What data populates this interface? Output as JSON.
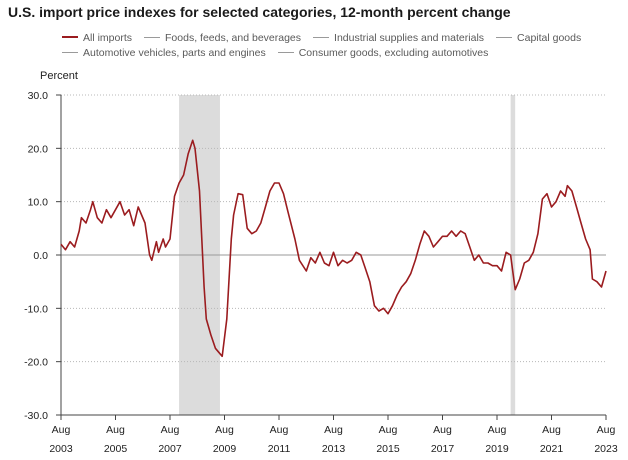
{
  "chart_data": {
    "type": "line",
    "title": "U.S. import price indexes for selected categories, 12-month percent change",
    "ylabel": "Percent",
    "ylim": [
      -30,
      30
    ],
    "y_ticks": [
      "30.0",
      "20.0",
      "10.0",
      "0.0",
      "-10.0",
      "-20.0",
      "-30.0"
    ],
    "y_tick_values": [
      30,
      20,
      10,
      0,
      -10,
      -20,
      -30
    ],
    "x_range": [
      "2003-08",
      "2023-08"
    ],
    "x_ticks": [
      {
        "month": "Aug",
        "year": "2003",
        "date": "2003-08"
      },
      {
        "month": "Aug",
        "year": "2005",
        "date": "2005-08"
      },
      {
        "month": "Aug",
        "year": "2007",
        "date": "2007-08"
      },
      {
        "month": "Aug",
        "year": "2009",
        "date": "2009-08"
      },
      {
        "month": "Aug",
        "year": "2011",
        "date": "2011-08"
      },
      {
        "month": "Aug",
        "year": "2013",
        "date": "2013-08"
      },
      {
        "month": "Aug",
        "year": "2015",
        "date": "2015-08"
      },
      {
        "month": "Aug",
        "year": "2017",
        "date": "2017-08"
      },
      {
        "month": "Aug",
        "year": "2019",
        "date": "2019-08"
      },
      {
        "month": "Aug",
        "year": "2021",
        "date": "2021-08"
      },
      {
        "month": "Aug",
        "year": "2023",
        "date": "2023-08"
      }
    ],
    "recessions": [
      {
        "start": "2007-12",
        "end": "2009-06"
      },
      {
        "start": "2020-02",
        "end": "2020-04"
      }
    ],
    "grid": "horizontal dotted",
    "legend_position": "top",
    "legend": [
      {
        "name": "All imports",
        "color": "#9b1c1f",
        "visible": true
      },
      {
        "name": "Foods, feeds, and beverages",
        "color": "#9a9a9a",
        "visible": false
      },
      {
        "name": "Industrial supplies and materials",
        "color": "#9a9a9a",
        "visible": false
      },
      {
        "name": "Capital goods",
        "color": "#9a9a9a",
        "visible": false
      },
      {
        "name": "Automotive vehicles, parts and engines",
        "color": "#9a9a9a",
        "visible": false
      },
      {
        "name": "Consumer goods, excluding automotives",
        "color": "#9a9a9a",
        "visible": false
      }
    ],
    "series": [
      {
        "name": "All imports",
        "color": "#9b1c1f",
        "points": [
          [
            "2003-08",
            2.0
          ],
          [
            "2003-10",
            1.0
          ],
          [
            "2003-12",
            2.5
          ],
          [
            "2004-02",
            1.5
          ],
          [
            "2004-04",
            4.5
          ],
          [
            "2004-05",
            7.0
          ],
          [
            "2004-07",
            6.0
          ],
          [
            "2004-09",
            8.5
          ],
          [
            "2004-10",
            10.0
          ],
          [
            "2004-12",
            7.0
          ],
          [
            "2005-02",
            6.0
          ],
          [
            "2005-04",
            8.5
          ],
          [
            "2005-06",
            7.0
          ],
          [
            "2005-08",
            8.5
          ],
          [
            "2005-10",
            10.0
          ],
          [
            "2005-12",
            7.5
          ],
          [
            "2006-02",
            8.5
          ],
          [
            "2006-04",
            5.5
          ],
          [
            "2006-06",
            9.0
          ],
          [
            "2006-09",
            6.0
          ],
          [
            "2006-11",
            0.0
          ],
          [
            "2006-12",
            -1.0
          ],
          [
            "2007-02",
            2.5
          ],
          [
            "2007-03",
            0.5
          ],
          [
            "2007-05",
            3.0
          ],
          [
            "2007-06",
            1.5
          ],
          [
            "2007-08",
            3.0
          ],
          [
            "2007-10",
            11.0
          ],
          [
            "2007-12",
            13.5
          ],
          [
            "2008-02",
            15.0
          ],
          [
            "2008-04",
            19.0
          ],
          [
            "2008-06",
            21.5
          ],
          [
            "2008-07",
            20.0
          ],
          [
            "2008-09",
            12.0
          ],
          [
            "2008-10",
            3.0
          ],
          [
            "2008-11",
            -6.0
          ],
          [
            "2008-12",
            -12.0
          ],
          [
            "2009-02",
            -15.0
          ],
          [
            "2009-04",
            -17.5
          ],
          [
            "2009-07",
            -19.0
          ],
          [
            "2009-09",
            -12.0
          ],
          [
            "2009-11",
            3.0
          ],
          [
            "2009-12",
            7.5
          ],
          [
            "2010-02",
            11.5
          ],
          [
            "2010-04",
            11.3
          ],
          [
            "2010-06",
            5.0
          ],
          [
            "2010-08",
            4.0
          ],
          [
            "2010-10",
            4.5
          ],
          [
            "2010-12",
            6.0
          ],
          [
            "2011-02",
            9.0
          ],
          [
            "2011-04",
            12.0
          ],
          [
            "2011-06",
            13.5
          ],
          [
            "2011-08",
            13.5
          ],
          [
            "2011-10",
            11.5
          ],
          [
            "2011-12",
            8.0
          ],
          [
            "2012-03",
            3.0
          ],
          [
            "2012-05",
            -1.0
          ],
          [
            "2012-08",
            -3.0
          ],
          [
            "2012-10",
            -0.5
          ],
          [
            "2012-12",
            -1.5
          ],
          [
            "2013-02",
            0.5
          ],
          [
            "2013-04",
            -1.5
          ],
          [
            "2013-06",
            -2.0
          ],
          [
            "2013-08",
            0.5
          ],
          [
            "2013-10",
            -2.0
          ],
          [
            "2013-12",
            -1.0
          ],
          [
            "2014-02",
            -1.5
          ],
          [
            "2014-04",
            -1.0
          ],
          [
            "2014-06",
            0.5
          ],
          [
            "2014-08",
            0.0
          ],
          [
            "2014-10",
            -2.5
          ],
          [
            "2014-12",
            -5.0
          ],
          [
            "2015-02",
            -9.5
          ],
          [
            "2015-04",
            -10.5
          ],
          [
            "2015-06",
            -10.0
          ],
          [
            "2015-08",
            -11.0
          ],
          [
            "2015-10",
            -9.5
          ],
          [
            "2015-12",
            -7.5
          ],
          [
            "2016-02",
            -6.0
          ],
          [
            "2016-04",
            -5.0
          ],
          [
            "2016-06",
            -3.5
          ],
          [
            "2016-08",
            -1.0
          ],
          [
            "2016-10",
            2.0
          ],
          [
            "2016-12",
            4.5
          ],
          [
            "2017-02",
            3.5
          ],
          [
            "2017-04",
            1.5
          ],
          [
            "2017-06",
            2.5
          ],
          [
            "2017-08",
            3.5
          ],
          [
            "2017-10",
            3.5
          ],
          [
            "2017-12",
            4.5
          ],
          [
            "2018-02",
            3.5
          ],
          [
            "2018-04",
            4.5
          ],
          [
            "2018-06",
            4.0
          ],
          [
            "2018-08",
            1.5
          ],
          [
            "2018-10",
            -1.0
          ],
          [
            "2018-12",
            0.0
          ],
          [
            "2019-02",
            -1.5
          ],
          [
            "2019-04",
            -1.5
          ],
          [
            "2019-06",
            -2.0
          ],
          [
            "2019-08",
            -2.0
          ],
          [
            "2019-10",
            -3.0
          ],
          [
            "2019-12",
            0.5
          ],
          [
            "2020-02",
            0.0
          ],
          [
            "2020-04",
            -6.5
          ],
          [
            "2020-06",
            -4.5
          ],
          [
            "2020-08",
            -1.5
          ],
          [
            "2020-10",
            -1.0
          ],
          [
            "2020-12",
            0.5
          ],
          [
            "2021-02",
            4.0
          ],
          [
            "2021-04",
            10.5
          ],
          [
            "2021-06",
            11.5
          ],
          [
            "2021-08",
            9.0
          ],
          [
            "2021-10",
            10.0
          ],
          [
            "2021-12",
            12.0
          ],
          [
            "2022-02",
            11.0
          ],
          [
            "2022-03",
            13.0
          ],
          [
            "2022-05",
            12.0
          ],
          [
            "2022-07",
            9.0
          ],
          [
            "2022-09",
            6.0
          ],
          [
            "2022-11",
            3.0
          ],
          [
            "2023-01",
            1.0
          ],
          [
            "2023-02",
            -4.5
          ],
          [
            "2023-04",
            -5.0
          ],
          [
            "2023-06",
            -6.0
          ],
          [
            "2023-08",
            -3.0
          ]
        ]
      }
    ]
  }
}
